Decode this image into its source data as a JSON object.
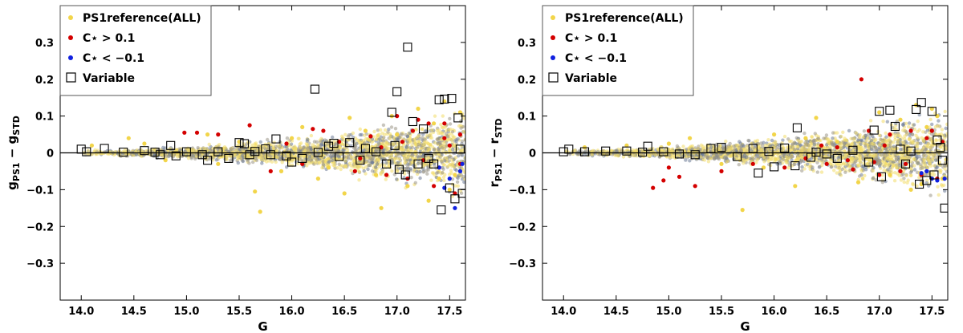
{
  "chart_data": [
    {
      "type": "scatter",
      "title": "",
      "xlabel": "G",
      "ylabel": "g",
      "ylabel_sub": "PS1",
      "ylabel_mid": " − g",
      "ylabel_sub2": "STD",
      "xlim": [
        13.8,
        17.65
      ],
      "ylim": [
        -0.4,
        0.4
      ],
      "xticks": [
        14.0,
        14.5,
        15.0,
        15.5,
        16.0,
        16.5,
        17.0,
        17.5
      ],
      "xtick_labels": [
        "14.0",
        "14.5",
        "15.0",
        "15.5",
        "16.0",
        "16.5",
        "17.0",
        "17.5"
      ],
      "yticks": [
        0.3,
        0.2,
        0.1,
        0,
        -0.1,
        -0.2,
        -0.3
      ],
      "ytick_labels": [
        "0.3",
        "0.2",
        "0.1",
        "0",
        "−0.1",
        "−0.2",
        "−0.3"
      ],
      "legend": {
        "placement": "top-left",
        "entries": [
          {
            "label": "PS1reference(ALL)",
            "marker": "dot",
            "color": "#f2d54a"
          },
          {
            "label": "C⋆ > 0.1",
            "marker": "dot",
            "color": "#d40000"
          },
          {
            "label": "C⋆ < −0.1",
            "marker": "dot",
            "color": "#1020e0"
          },
          {
            "label": "Variable",
            "marker": "square",
            "color": "#000000"
          }
        ]
      },
      "series": [
        {
          "name": "PS1reference(ALL)",
          "color": "#f2d54a",
          "points": [
            [
              15.65,
              -0.105
            ],
            [
              15.7,
              -0.16
            ],
            [
              16.25,
              -0.07
            ],
            [
              16.5,
              -0.11
            ],
            [
              16.85,
              -0.15
            ],
            [
              17.3,
              -0.13
            ],
            [
              16.95,
              0.1
            ],
            [
              17.2,
              0.12
            ],
            [
              17.45,
              0.14
            ],
            [
              16.55,
              0.095
            ],
            [
              17.6,
              0.11
            ],
            [
              14.45,
              0.04
            ],
            [
              15.2,
              0.05
            ],
            [
              16.1,
              0.07
            ],
            [
              16.8,
              -0.06
            ],
            [
              17.1,
              -0.09
            ],
            [
              17.5,
              -0.1
            ],
            [
              15.9,
              -0.05
            ],
            [
              17.35,
              0.08
            ],
            [
              16.7,
              0.06
            ],
            [
              14.1,
              0.02
            ],
            [
              14.8,
              -0.02
            ],
            [
              15.5,
              0.03
            ],
            [
              16.35,
              -0.04
            ],
            [
              17.55,
              -0.06
            ],
            [
              17.0,
              0.05
            ],
            [
              16.0,
              0.04
            ],
            [
              15.3,
              -0.03
            ],
            [
              14.6,
              0.025
            ],
            [
              17.4,
              -0.07
            ]
          ]
        },
        {
          "name": "C⋆ > 0.1",
          "color": "#d40000",
          "points": [
            [
              14.98,
              0.055
            ],
            [
              15.1,
              0.055
            ],
            [
              15.3,
              0.05
            ],
            [
              15.6,
              0.075
            ],
            [
              16.2,
              0.065
            ],
            [
              16.3,
              0.06
            ],
            [
              17.0,
              0.1
            ],
            [
              17.2,
              0.09
            ],
            [
              17.3,
              0.08
            ],
            [
              17.45,
              0.08
            ],
            [
              17.6,
              0.05
            ],
            [
              15.8,
              -0.05
            ],
            [
              16.1,
              -0.03
            ],
            [
              16.6,
              -0.05
            ],
            [
              16.9,
              -0.06
            ],
            [
              17.1,
              -0.07
            ],
            [
              17.35,
              -0.09
            ],
            [
              17.55,
              -0.11
            ],
            [
              17.15,
              0.06
            ],
            [
              16.75,
              0.045
            ],
            [
              17.5,
              0.02
            ],
            [
              17.4,
              -0.04
            ],
            [
              16.45,
              0.03
            ],
            [
              15.95,
              0.025
            ],
            [
              17.05,
              0.03
            ],
            [
              17.25,
              -0.02
            ],
            [
              16.85,
              0.015
            ],
            [
              17.6,
              -0.03
            ],
            [
              17.45,
              0.04
            ],
            [
              16.65,
              -0.015
            ]
          ]
        },
        {
          "name": "C⋆ < −0.1",
          "color": "#1020e0",
          "points": [
            [
              17.45,
              -0.095
            ],
            [
              17.55,
              -0.15
            ],
            [
              17.6,
              -0.05
            ],
            [
              17.5,
              -0.07
            ],
            [
              17.62,
              -0.03
            ],
            [
              17.4,
              -0.04
            ]
          ]
        },
        {
          "name": "Variable",
          "color": "#000000",
          "points": [
            [
              14.0,
              0.01
            ],
            [
              14.05,
              0.003
            ],
            [
              14.22,
              0.012
            ],
            [
              14.4,
              0.002
            ],
            [
              14.6,
              0.006
            ],
            [
              14.7,
              0.002
            ],
            [
              14.75,
              -0.005
            ],
            [
              14.85,
              0.02
            ],
            [
              15.0,
              0.003
            ],
            [
              15.15,
              -0.005
            ],
            [
              15.2,
              -0.02
            ],
            [
              15.3,
              0.003
            ],
            [
              15.4,
              -0.015
            ],
            [
              15.5,
              0.028
            ],
            [
              15.55,
              0.025
            ],
            [
              15.6,
              -0.005
            ],
            [
              15.8,
              -0.005
            ],
            [
              15.85,
              0.038
            ],
            [
              15.95,
              -0.008
            ],
            [
              16.0,
              -0.025
            ],
            [
              16.1,
              -0.015
            ],
            [
              16.22,
              0.173
            ],
            [
              16.35,
              0.018
            ],
            [
              16.45,
              -0.01
            ],
            [
              16.55,
              0.028
            ],
            [
              16.65,
              -0.02
            ],
            [
              16.8,
              0.003
            ],
            [
              16.9,
              -0.03
            ],
            [
              16.95,
              0.11
            ],
            [
              16.98,
              0.02
            ],
            [
              17.0,
              0.166
            ],
            [
              17.02,
              -0.045
            ],
            [
              17.08,
              -0.06
            ],
            [
              17.1,
              0.287
            ],
            [
              17.15,
              0.085
            ],
            [
              17.2,
              -0.03
            ],
            [
              17.3,
              -0.015
            ],
            [
              17.35,
              -0.03
            ],
            [
              17.4,
              0.144
            ],
            [
              17.42,
              -0.155
            ],
            [
              17.45,
              0.146
            ],
            [
              17.5,
              -0.095
            ],
            [
              17.52,
              0.148
            ],
            [
              17.55,
              -0.125
            ],
            [
              17.58,
              0.095
            ],
            [
              17.62,
              -0.11
            ],
            [
              16.7,
              0.012
            ],
            [
              16.4,
              0.026
            ],
            [
              15.65,
              0.004
            ],
            [
              16.25,
              0.001
            ],
            [
              17.25,
              0.065
            ],
            [
              17.6,
              0.01
            ],
            [
              14.9,
              -0.008
            ],
            [
              15.75,
              0.011
            ]
          ]
        }
      ]
    },
    {
      "type": "scatter",
      "title": "",
      "xlabel": "G",
      "ylabel": "r",
      "ylabel_sub": "PS1",
      "ylabel_mid": " − r",
      "ylabel_sub2": "STD",
      "xlim": [
        13.8,
        17.65
      ],
      "ylim": [
        -0.4,
        0.4
      ],
      "xticks": [
        14.0,
        14.5,
        15.0,
        15.5,
        16.0,
        16.5,
        17.0,
        17.5
      ],
      "xtick_labels": [
        "14.0",
        "14.5",
        "15.0",
        "15.5",
        "16.0",
        "16.5",
        "17.0",
        "17.5"
      ],
      "yticks": [
        0.3,
        0.2,
        0.1,
        0,
        -0.1,
        -0.2,
        -0.3
      ],
      "ytick_labels": [
        "0.3",
        "0.2",
        "0.1",
        "0",
        "−0.1",
        "−0.2",
        "−0.3"
      ],
      "legend": {
        "placement": "top-left",
        "entries": [
          {
            "label": "PS1reference(ALL)",
            "marker": "dot",
            "color": "#f2d54a"
          },
          {
            "label": "C⋆ > 0.1",
            "marker": "dot",
            "color": "#d40000"
          },
          {
            "label": "C⋆ < −0.1",
            "marker": "dot",
            "color": "#1020e0"
          },
          {
            "label": "Variable",
            "marker": "square",
            "color": "#000000"
          }
        ]
      },
      "series": [
        {
          "name": "PS1reference(ALL)",
          "color": "#f2d54a",
          "points": [
            [
              15.7,
              -0.155
            ],
            [
              16.2,
              -0.09
            ],
            [
              17.0,
              0.11
            ],
            [
              17.35,
              0.13
            ],
            [
              17.5,
              0.12
            ],
            [
              16.4,
              0.095
            ],
            [
              17.55,
              0.1
            ],
            [
              16.8,
              -0.08
            ],
            [
              17.3,
              -0.1
            ],
            [
              15.2,
              0.04
            ],
            [
              14.6,
              0.02
            ],
            [
              16.0,
              0.05
            ],
            [
              17.1,
              -0.06
            ],
            [
              17.45,
              0.07
            ],
            [
              16.6,
              0.03
            ],
            [
              15.5,
              -0.03
            ],
            [
              17.6,
              -0.07
            ],
            [
              16.3,
              0.04
            ],
            [
              14.2,
              0.015
            ],
            [
              15.9,
              -0.04
            ],
            [
              17.2,
              0.09
            ],
            [
              16.9,
              0.06
            ],
            [
              17.4,
              -0.085
            ],
            [
              15.0,
              0.025
            ]
          ]
        },
        {
          "name": "C⋆ > 0.1",
          "color": "#d40000",
          "points": [
            [
              16.83,
              0.2
            ],
            [
              14.85,
              -0.095
            ],
            [
              14.95,
              -0.075
            ],
            [
              15.1,
              -0.065
            ],
            [
              15.25,
              -0.09
            ],
            [
              15.0,
              -0.04
            ],
            [
              15.5,
              -0.05
            ],
            [
              16.1,
              -0.04
            ],
            [
              16.5,
              -0.03
            ],
            [
              16.75,
              -0.045
            ],
            [
              17.0,
              -0.06
            ],
            [
              17.2,
              -0.05
            ],
            [
              17.4,
              -0.06
            ],
            [
              17.55,
              -0.07
            ],
            [
              16.9,
              0.06
            ],
            [
              17.1,
              0.05
            ],
            [
              17.3,
              0.06
            ],
            [
              17.5,
              0.06
            ],
            [
              16.7,
              -0.02
            ],
            [
              17.25,
              -0.03
            ],
            [
              16.45,
              0.02
            ],
            [
              17.6,
              0.03
            ],
            [
              16.3,
              -0.015
            ],
            [
              17.05,
              0.02
            ],
            [
              16.95,
              -0.025
            ],
            [
              17.45,
              0.04
            ],
            [
              16.6,
              0.015
            ],
            [
              15.8,
              -0.03
            ]
          ]
        },
        {
          "name": "C⋆ < −0.1",
          "color": "#1020e0",
          "points": [
            [
              17.4,
              -0.055
            ],
            [
              17.5,
              -0.07
            ],
            [
              17.55,
              -0.075
            ],
            [
              17.62,
              -0.07
            ],
            [
              17.45,
              -0.05
            ]
          ]
        },
        {
          "name": "Variable",
          "color": "#000000",
          "points": [
            [
              14.0,
              0.003
            ],
            [
              14.05,
              0.01
            ],
            [
              14.2,
              0.003
            ],
            [
              14.4,
              0.005
            ],
            [
              14.6,
              0.005
            ],
            [
              14.75,
              0.002
            ],
            [
              14.8,
              0.018
            ],
            [
              14.95,
              0.003
            ],
            [
              15.1,
              -0.003
            ],
            [
              15.25,
              -0.005
            ],
            [
              15.4,
              0.012
            ],
            [
              15.5,
              0.015
            ],
            [
              15.65,
              -0.01
            ],
            [
              15.8,
              0.012
            ],
            [
              15.85,
              -0.055
            ],
            [
              16.0,
              -0.038
            ],
            [
              16.1,
              0.013
            ],
            [
              16.2,
              -0.035
            ],
            [
              16.22,
              0.068
            ],
            [
              16.35,
              -0.012
            ],
            [
              16.5,
              -0.003
            ],
            [
              16.6,
              -0.015
            ],
            [
              16.75,
              0.007
            ],
            [
              16.9,
              -0.025
            ],
            [
              16.95,
              0.062
            ],
            [
              17.0,
              0.113
            ],
            [
              17.02,
              -0.065
            ],
            [
              17.1,
              0.116
            ],
            [
              17.15,
              0.072
            ],
            [
              17.25,
              -0.03
            ],
            [
              17.3,
              0.005
            ],
            [
              17.35,
              0.118
            ],
            [
              17.38,
              -0.085
            ],
            [
              17.4,
              0.137
            ],
            [
              17.45,
              -0.075
            ],
            [
              17.5,
              0.113
            ],
            [
              17.52,
              -0.06
            ],
            [
              17.55,
              0.035
            ],
            [
              17.58,
              0.015
            ],
            [
              17.62,
              -0.15
            ],
            [
              16.4,
              0.002
            ],
            [
              15.95,
              0.004
            ],
            [
              17.2,
              0.01
            ],
            [
              17.6,
              -0.02
            ]
          ]
        }
      ]
    }
  ]
}
